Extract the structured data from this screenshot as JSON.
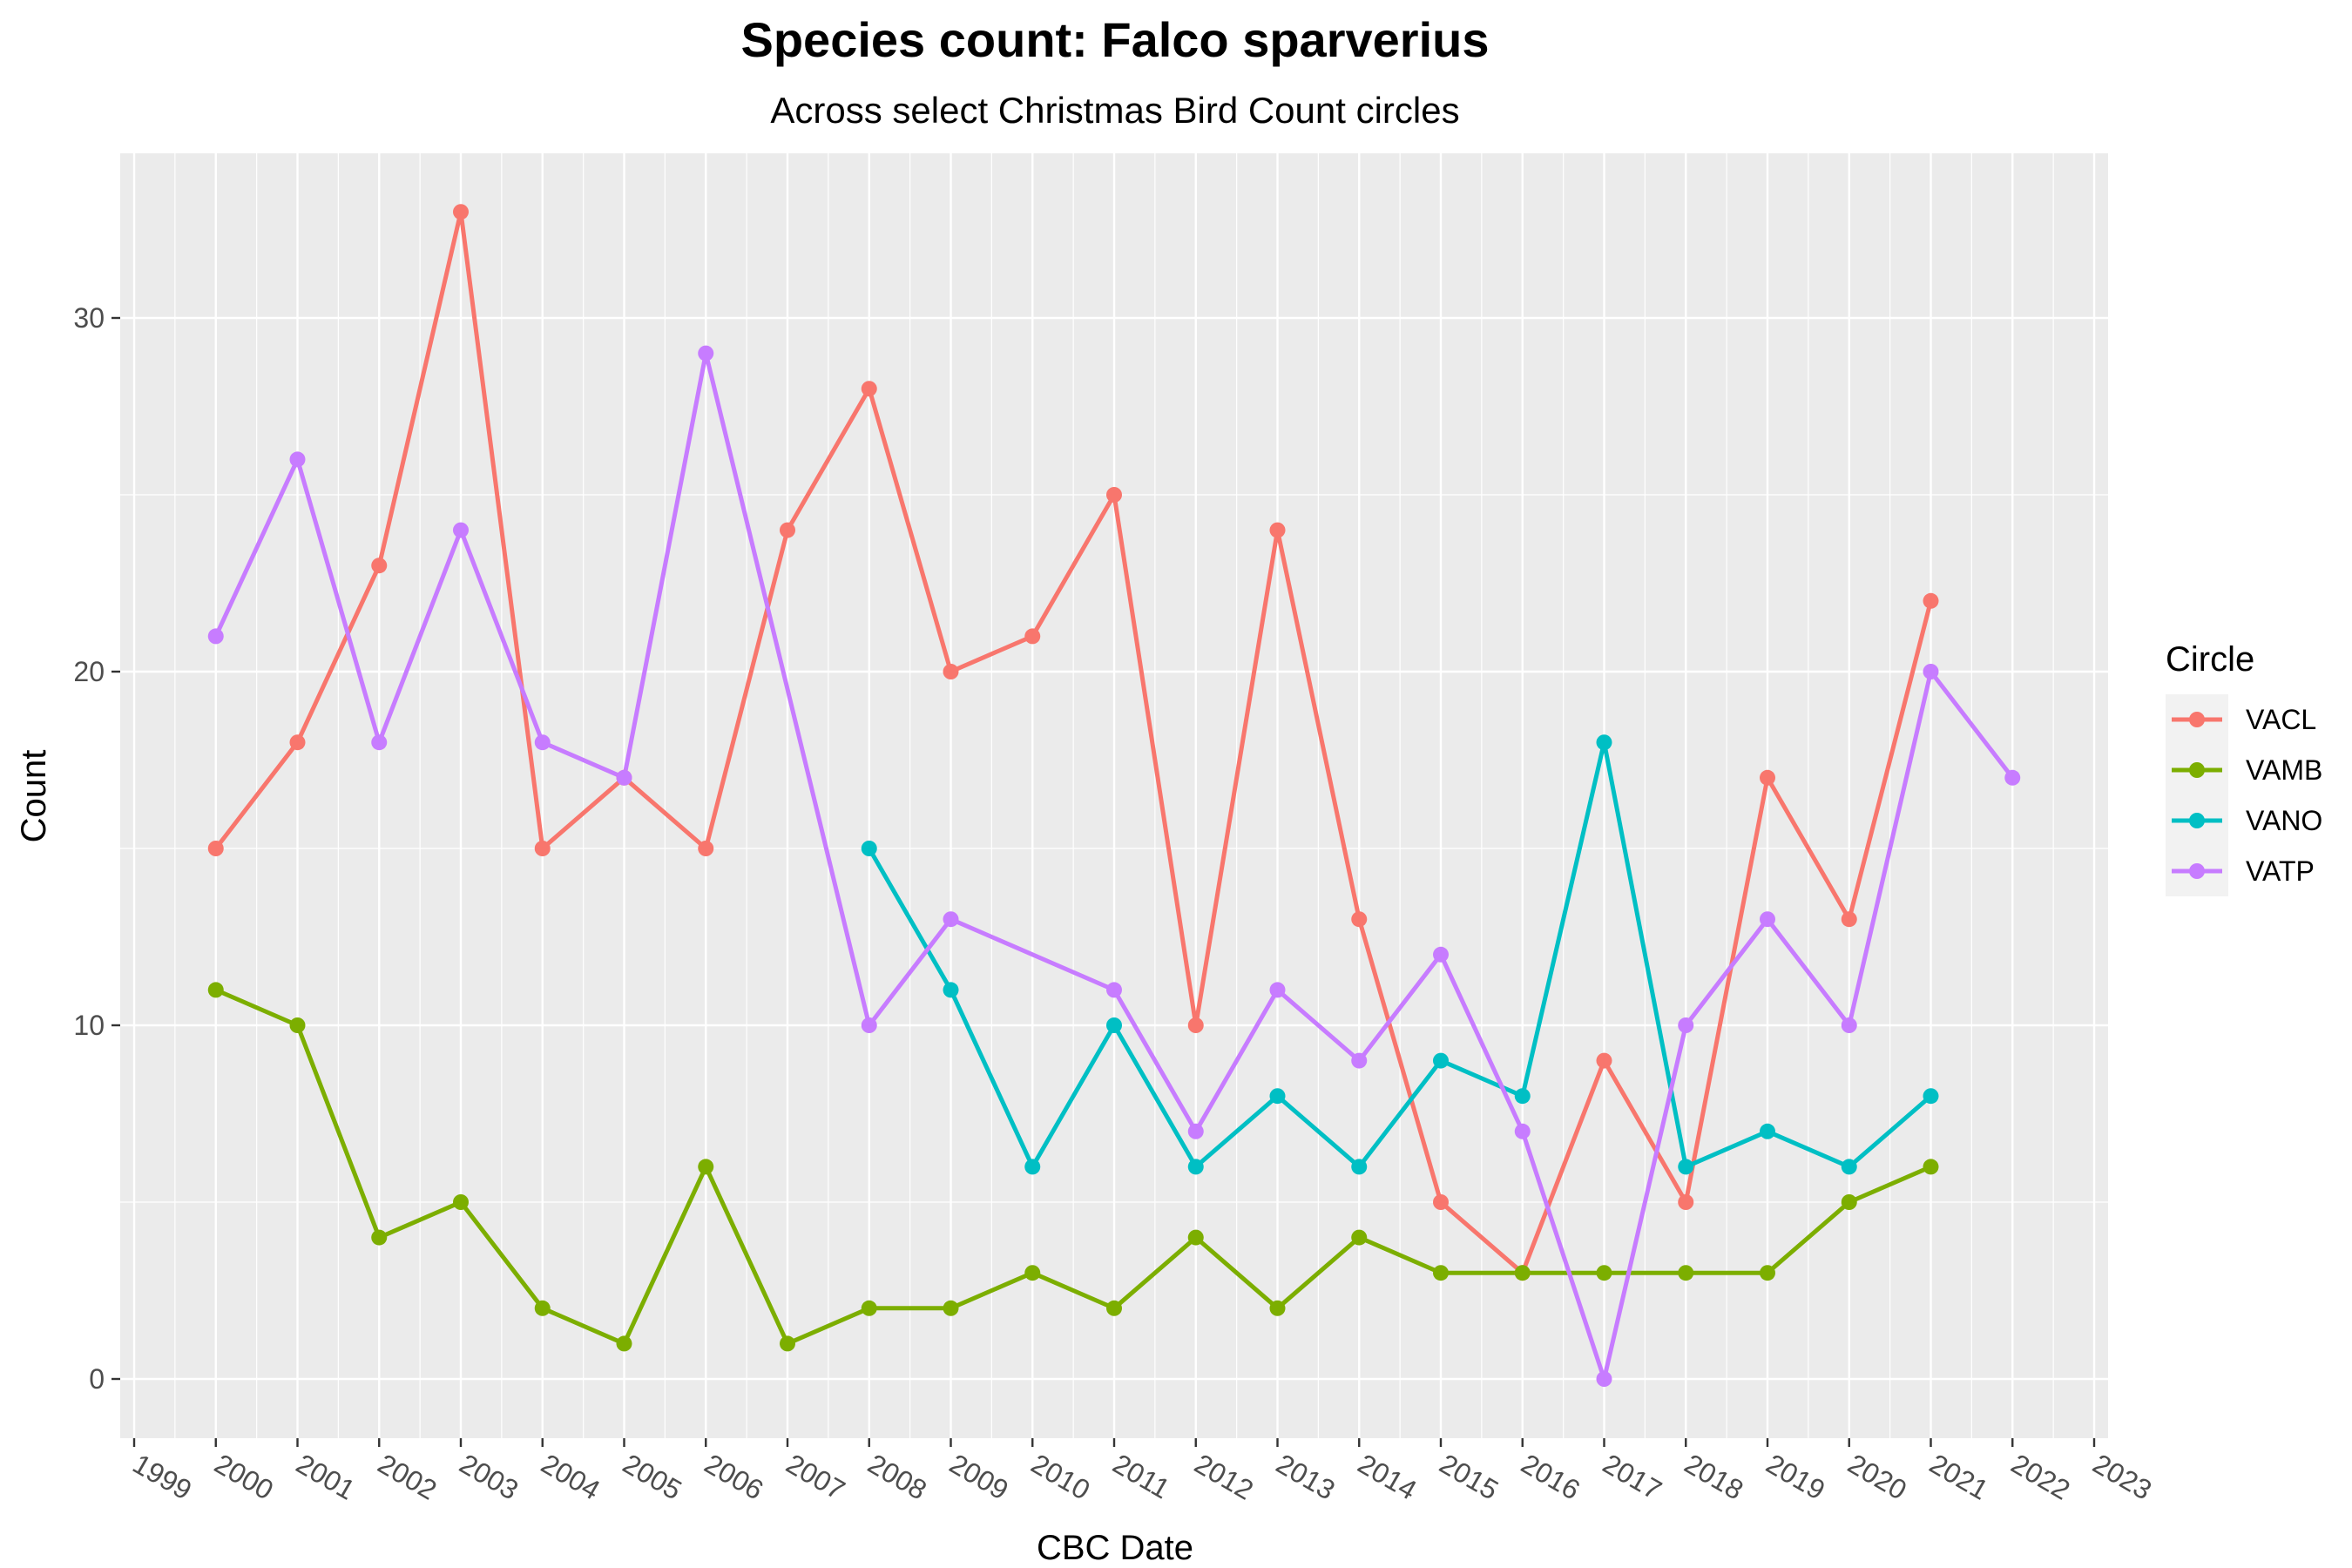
{
  "chart_data": {
    "type": "line",
    "title": "Species count: Falco sparverius",
    "subtitle": "Across select Christmas Bird Count circles",
    "xlabel": "CBC Date",
    "ylabel": "Count",
    "xlim": [
      1999,
      2023
    ],
    "ylim": [
      0,
      33
    ],
    "x_ticks": [
      "1999",
      "2000",
      "2001",
      "2002",
      "2003",
      "2004",
      "2005",
      "2006",
      "2007",
      "2008",
      "2009",
      "2010",
      "2011",
      "2012",
      "2013",
      "2014",
      "2015",
      "2016",
      "2017",
      "2018",
      "2019",
      "2020",
      "2021",
      "2022",
      "2023"
    ],
    "y_ticks": [
      0,
      10,
      20,
      30
    ],
    "grid": true,
    "legend": {
      "title": "Circle",
      "position": "right"
    },
    "series": [
      {
        "name": "VACL",
        "color": "#F8766D",
        "points": [
          [
            2000,
            15
          ],
          [
            2001,
            18
          ],
          [
            2002,
            23
          ],
          [
            2003,
            33
          ],
          [
            2004,
            15
          ],
          [
            2005,
            17
          ],
          [
            2006,
            15
          ],
          [
            2007,
            24
          ],
          [
            2008,
            28
          ],
          [
            2009,
            20
          ],
          [
            2010,
            21
          ],
          [
            2011,
            25
          ],
          [
            2012,
            10
          ],
          [
            2013,
            24
          ],
          [
            2014,
            13
          ],
          [
            2015,
            5
          ],
          [
            2016,
            3
          ],
          [
            2017,
            9
          ],
          [
            2018,
            5
          ],
          [
            2019,
            17
          ],
          [
            2020,
            13
          ],
          [
            2021,
            22
          ]
        ]
      },
      {
        "name": "VAMB",
        "color": "#7CAE00",
        "points": [
          [
            2000,
            11
          ],
          [
            2001,
            10
          ],
          [
            2002,
            4
          ],
          [
            2003,
            5
          ],
          [
            2004,
            2
          ],
          [
            2005,
            1
          ],
          [
            2006,
            6
          ],
          [
            2007,
            1
          ],
          [
            2008,
            2
          ],
          [
            2009,
            2
          ],
          [
            2010,
            3
          ],
          [
            2011,
            2
          ],
          [
            2012,
            4
          ],
          [
            2013,
            2
          ],
          [
            2014,
            4
          ],
          [
            2015,
            3
          ],
          [
            2016,
            3
          ],
          [
            2017,
            3
          ],
          [
            2018,
            3
          ],
          [
            2019,
            3
          ],
          [
            2020,
            5
          ],
          [
            2021,
            6
          ]
        ]
      },
      {
        "name": "VANO",
        "color": "#00BFC4",
        "points": [
          [
            2008,
            15
          ],
          [
            2009,
            11
          ],
          [
            2010,
            6
          ],
          [
            2011,
            10
          ],
          [
            2012,
            6
          ],
          [
            2013,
            8
          ],
          [
            2014,
            6
          ],
          [
            2015,
            9
          ],
          [
            2016,
            8
          ],
          [
            2017,
            18
          ],
          [
            2018,
            6
          ],
          [
            2019,
            7
          ],
          [
            2020,
            6
          ],
          [
            2021,
            8
          ]
        ]
      },
      {
        "name": "VATP",
        "color": "#C77CFF",
        "points": [
          [
            2000,
            21
          ],
          [
            2001,
            26
          ],
          [
            2002,
            18
          ],
          [
            2003,
            24
          ],
          [
            2004,
            18
          ],
          [
            2005,
            17
          ],
          [
            2006,
            29
          ],
          [
            2008,
            10
          ],
          [
            2009,
            13
          ],
          [
            2011,
            11
          ],
          [
            2012,
            7
          ],
          [
            2013,
            11
          ],
          [
            2014,
            9
          ],
          [
            2015,
            12
          ],
          [
            2016,
            7
          ],
          [
            2017,
            0
          ],
          [
            2018,
            10
          ],
          [
            2019,
            13
          ],
          [
            2020,
            10
          ],
          [
            2021,
            20
          ],
          [
            2022,
            17
          ]
        ]
      }
    ]
  }
}
